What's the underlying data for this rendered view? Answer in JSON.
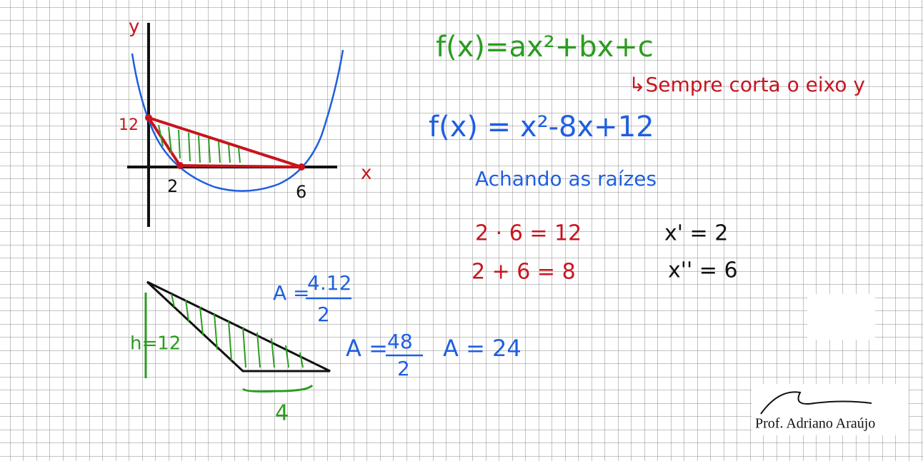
{
  "graph": {
    "y_label": "y",
    "x_label": "x",
    "y_intercept": "12",
    "root_1": "2",
    "root_2": "6"
  },
  "equations": {
    "general": "f(x)=ax²+bx+c",
    "note": "↳Sempre corta o eixo y",
    "specific": "f(x) = x²-8x+12",
    "heading": "Achando as raízes",
    "product": "2 · 6 = 12",
    "sum": "2 + 6 = 8",
    "root_1": "x' = 2",
    "root_2": "x'' = 6"
  },
  "triangle": {
    "height": "h=12",
    "base": "4",
    "area_1_left": "A =",
    "area_1_numerator": "4.12",
    "area_1_denominator": "2",
    "area_2_left": "A =",
    "area_2_numerator": "48",
    "area_2_denominator": "2",
    "area_result": "A = 24"
  },
  "signature": "Prof. Adriano Araújo"
}
